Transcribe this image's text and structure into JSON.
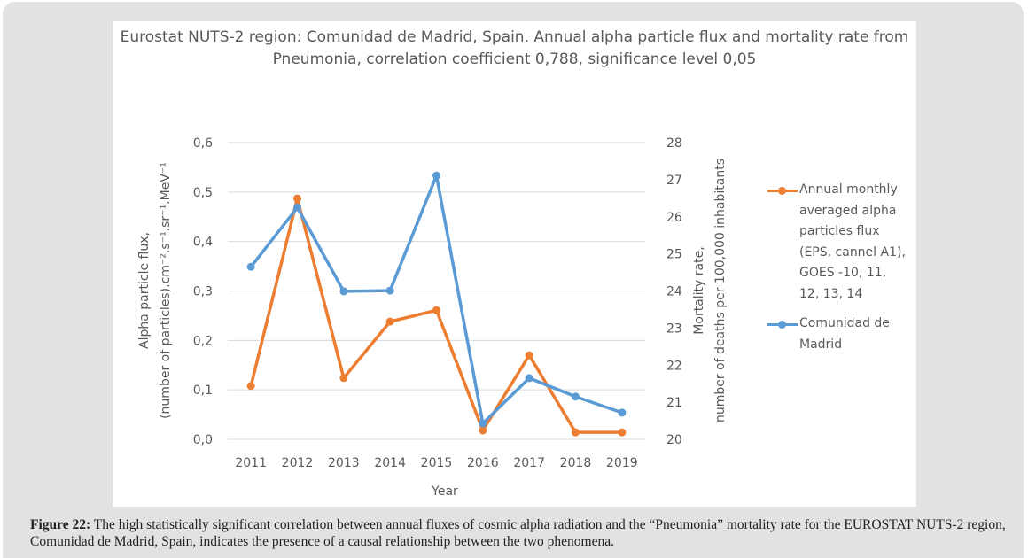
{
  "chart_data": {
    "type": "line",
    "title": "Eurostat NUTS-2 region: Comunidad de Madrid, Spain. Annual alpha particle flux and mortality rate from Pneumonia, correlation coefficient 0,788, significance level 0,05",
    "xlabel": "Year",
    "ylabel_left": [
      "Alpha particle flux,",
      "(number of particles).cm⁻².s⁻¹.sr⁻¹.MeV⁻¹"
    ],
    "ylabel_right": [
      "Mortality rate,",
      "number of deaths per 100,000 inhabitants"
    ],
    "categories": [
      "2011",
      "2012",
      "2013",
      "2014",
      "2015",
      "2016",
      "2017",
      "2018",
      "2019"
    ],
    "ylim_left": [
      0,
      0.6
    ],
    "ylim_right": [
      20,
      28
    ],
    "yticks_left": [
      "0,0",
      "0,1",
      "0,2",
      "0,3",
      "0,4",
      "0,5",
      "0,6"
    ],
    "yticks_right": [
      "20",
      "21",
      "22",
      "23",
      "24",
      "25",
      "26",
      "27",
      "28"
    ],
    "grid": true,
    "legend_position": "right",
    "series": [
      {
        "name": "Annual monthly averaged alpha particles flux (EPS, cannel A1), GOES -10, 11, 12, 13, 14",
        "legend_lines": [
          "Annual monthly",
          "averaged alpha",
          "particles flux",
          "(EPS, cannel A1),",
          "GOES -10, 11,",
          "12, 13, 14"
        ],
        "axis": "left",
        "color": "#ed7d31",
        "values": [
          0.108,
          0.487,
          0.124,
          0.238,
          0.261,
          0.018,
          0.17,
          0.014,
          0.014
        ]
      },
      {
        "name": "Comunidad de Madrid",
        "legend_lines": [
          "Comunidad de",
          "Madrid"
        ],
        "axis": "right",
        "color": "#5b9bd5",
        "values": [
          24.65,
          26.25,
          23.99,
          24.01,
          27.11,
          20.43,
          21.65,
          21.15,
          20.72
        ]
      }
    ]
  },
  "caption": {
    "label": "Figure 22:",
    "text": " The high statistically significant correlation between annual fluxes of cosmic alpha radiation and the “Pneumonia” mortality rate for the EUROSTAT NUTS-2 region, Comunidad de Madrid, Spain, indicates the presence of a causal relationship between the two phenomena."
  }
}
